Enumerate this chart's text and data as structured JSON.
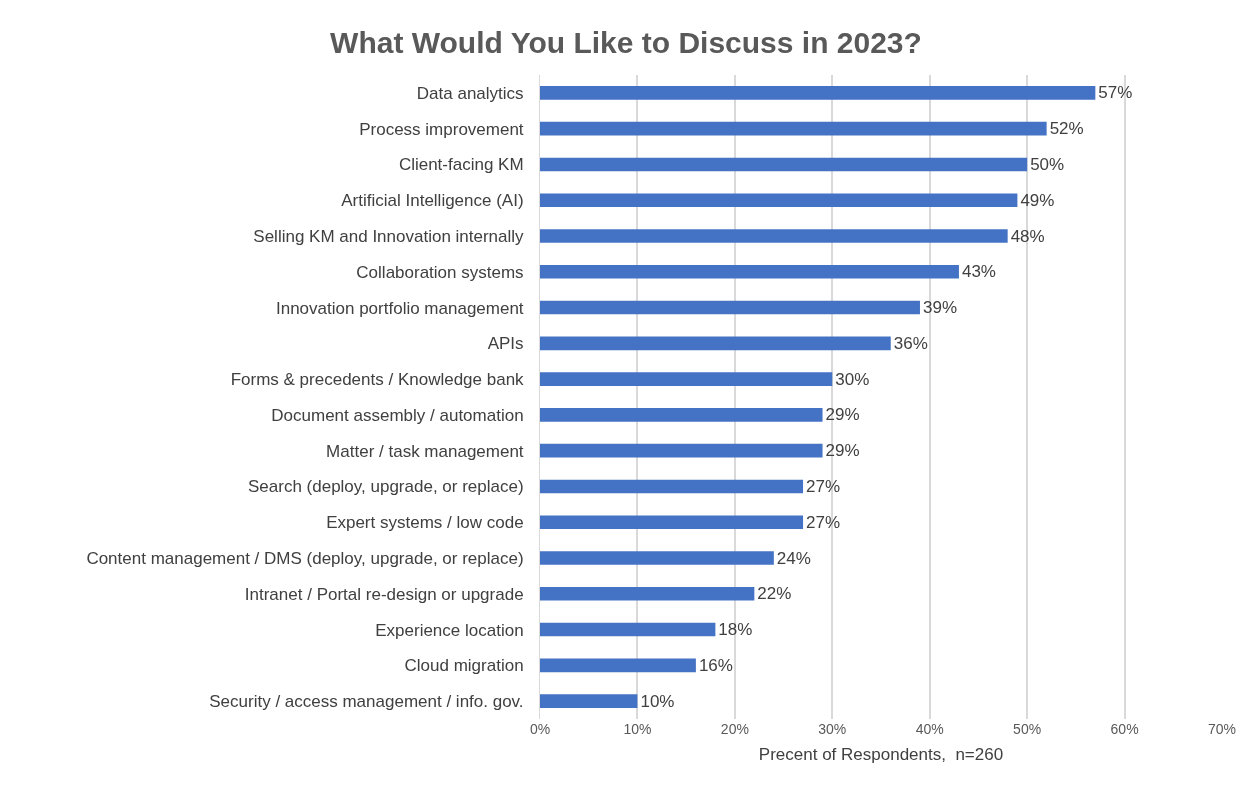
{
  "chart_data": {
    "type": "bar",
    "orientation": "horizontal",
    "title": "What Would You Like to Discuss in 2023?",
    "xlabel": "Precent of Respondents,  n=260",
    "categories": [
      "Data analytics",
      "Process improvement",
      "Client-facing KM",
      "Artificial Intelligence (AI)",
      "Selling KM and Innovation internally",
      "Collaboration systems",
      "Innovation portfolio management",
      "APIs",
      "Forms & precedents / Knowledge bank",
      "Document assembly / automation",
      "Matter / task management",
      "Search (deploy, upgrade, or replace)",
      "Expert systems / low code",
      "Content management / DMS (deploy, upgrade, or replace)",
      "Intranet / Portal re-design or upgrade",
      "Experience location",
      "Cloud migration",
      "Security / access management / info. gov."
    ],
    "values": [
      57,
      52,
      50,
      49,
      48,
      43,
      39,
      36,
      30,
      29,
      29,
      27,
      27,
      24,
      22,
      18,
      16,
      10
    ],
    "value_labels": [
      "57%",
      "52%",
      "50%",
      "49%",
      "48%",
      "43%",
      "39%",
      "36%",
      "30%",
      "29%",
      "29%",
      "27%",
      "27%",
      "24%",
      "22%",
      "18%",
      "16%",
      "10%"
    ],
    "color": "#4472c4",
    "xlim": [
      0,
      70
    ],
    "xticks": [
      {
        "value": 0,
        "label": "0%"
      },
      {
        "value": 10,
        "label": "10%"
      },
      {
        "value": 20,
        "label": "20%"
      },
      {
        "value": 30,
        "label": "30%"
      },
      {
        "value": 40,
        "label": "40%"
      },
      {
        "value": 50,
        "label": "50%"
      },
      {
        "value": 60,
        "label": "60%"
      },
      {
        "value": 70,
        "label": "70%"
      }
    ],
    "grid": "x"
  }
}
